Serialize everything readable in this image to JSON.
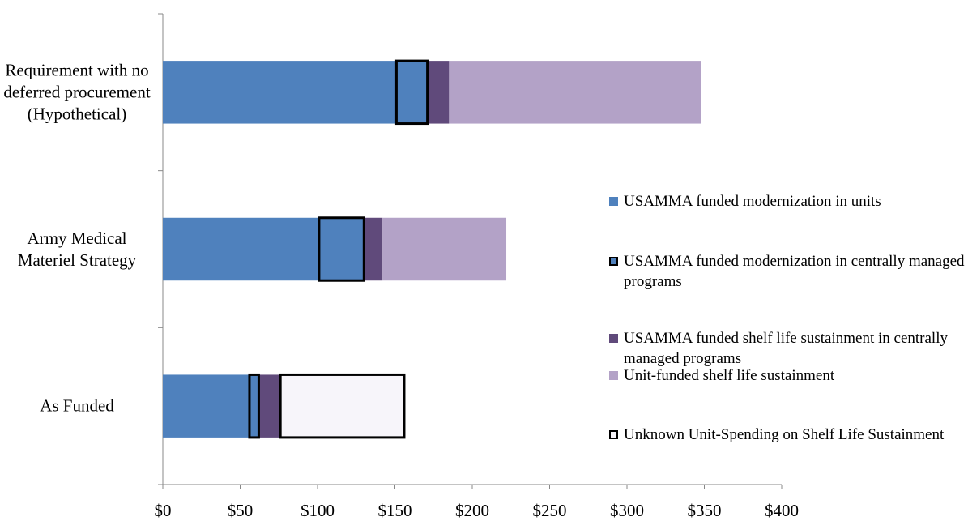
{
  "chart_data": {
    "type": "stacked-bar-horizontal",
    "categories": [
      "Requirement with no deferred procurement (Hypothetical)",
      "Army Medical Materiel Strategy",
      "As Funded"
    ],
    "series": [
      {
        "name": "USAMMA funded modernization in units",
        "color": "#4f81bd",
        "values": [
          151,
          101,
          56
        ]
      },
      {
        "name": "USAMMA funded modernization in centrally managed programs",
        "color": "#4f81bd",
        "outline": "#000000",
        "values": [
          20,
          29,
          6
        ]
      },
      {
        "name": "USAMMA funded shelf life sustainment in centrally managed programs",
        "color": "#604a7b",
        "values": [
          14,
          12,
          14
        ]
      },
      {
        "name": "Unit-funded shelf life sustainment",
        "color": "#b3a2c7",
        "values": [
          163,
          80,
          null
        ]
      },
      {
        "name": "Unknown Unit-Spending on Shelf Life Sustainment",
        "color": "#f7f5fa",
        "outline": "#000000",
        "values": [
          null,
          null,
          80
        ]
      }
    ],
    "xlim": [
      0,
      400
    ],
    "xticks": [
      {
        "value": 0,
        "label": "$0"
      },
      {
        "value": 50,
        "label": "$50"
      },
      {
        "value": 100,
        "label": "$100"
      },
      {
        "value": 150,
        "label": "$150"
      },
      {
        "value": 200,
        "label": "$200"
      },
      {
        "value": 250,
        "label": "$250"
      },
      {
        "value": 300,
        "label": "$300"
      },
      {
        "value": 350,
        "label": "$350"
      },
      {
        "value": 400,
        "label": "$400"
      }
    ],
    "legend": "right"
  }
}
